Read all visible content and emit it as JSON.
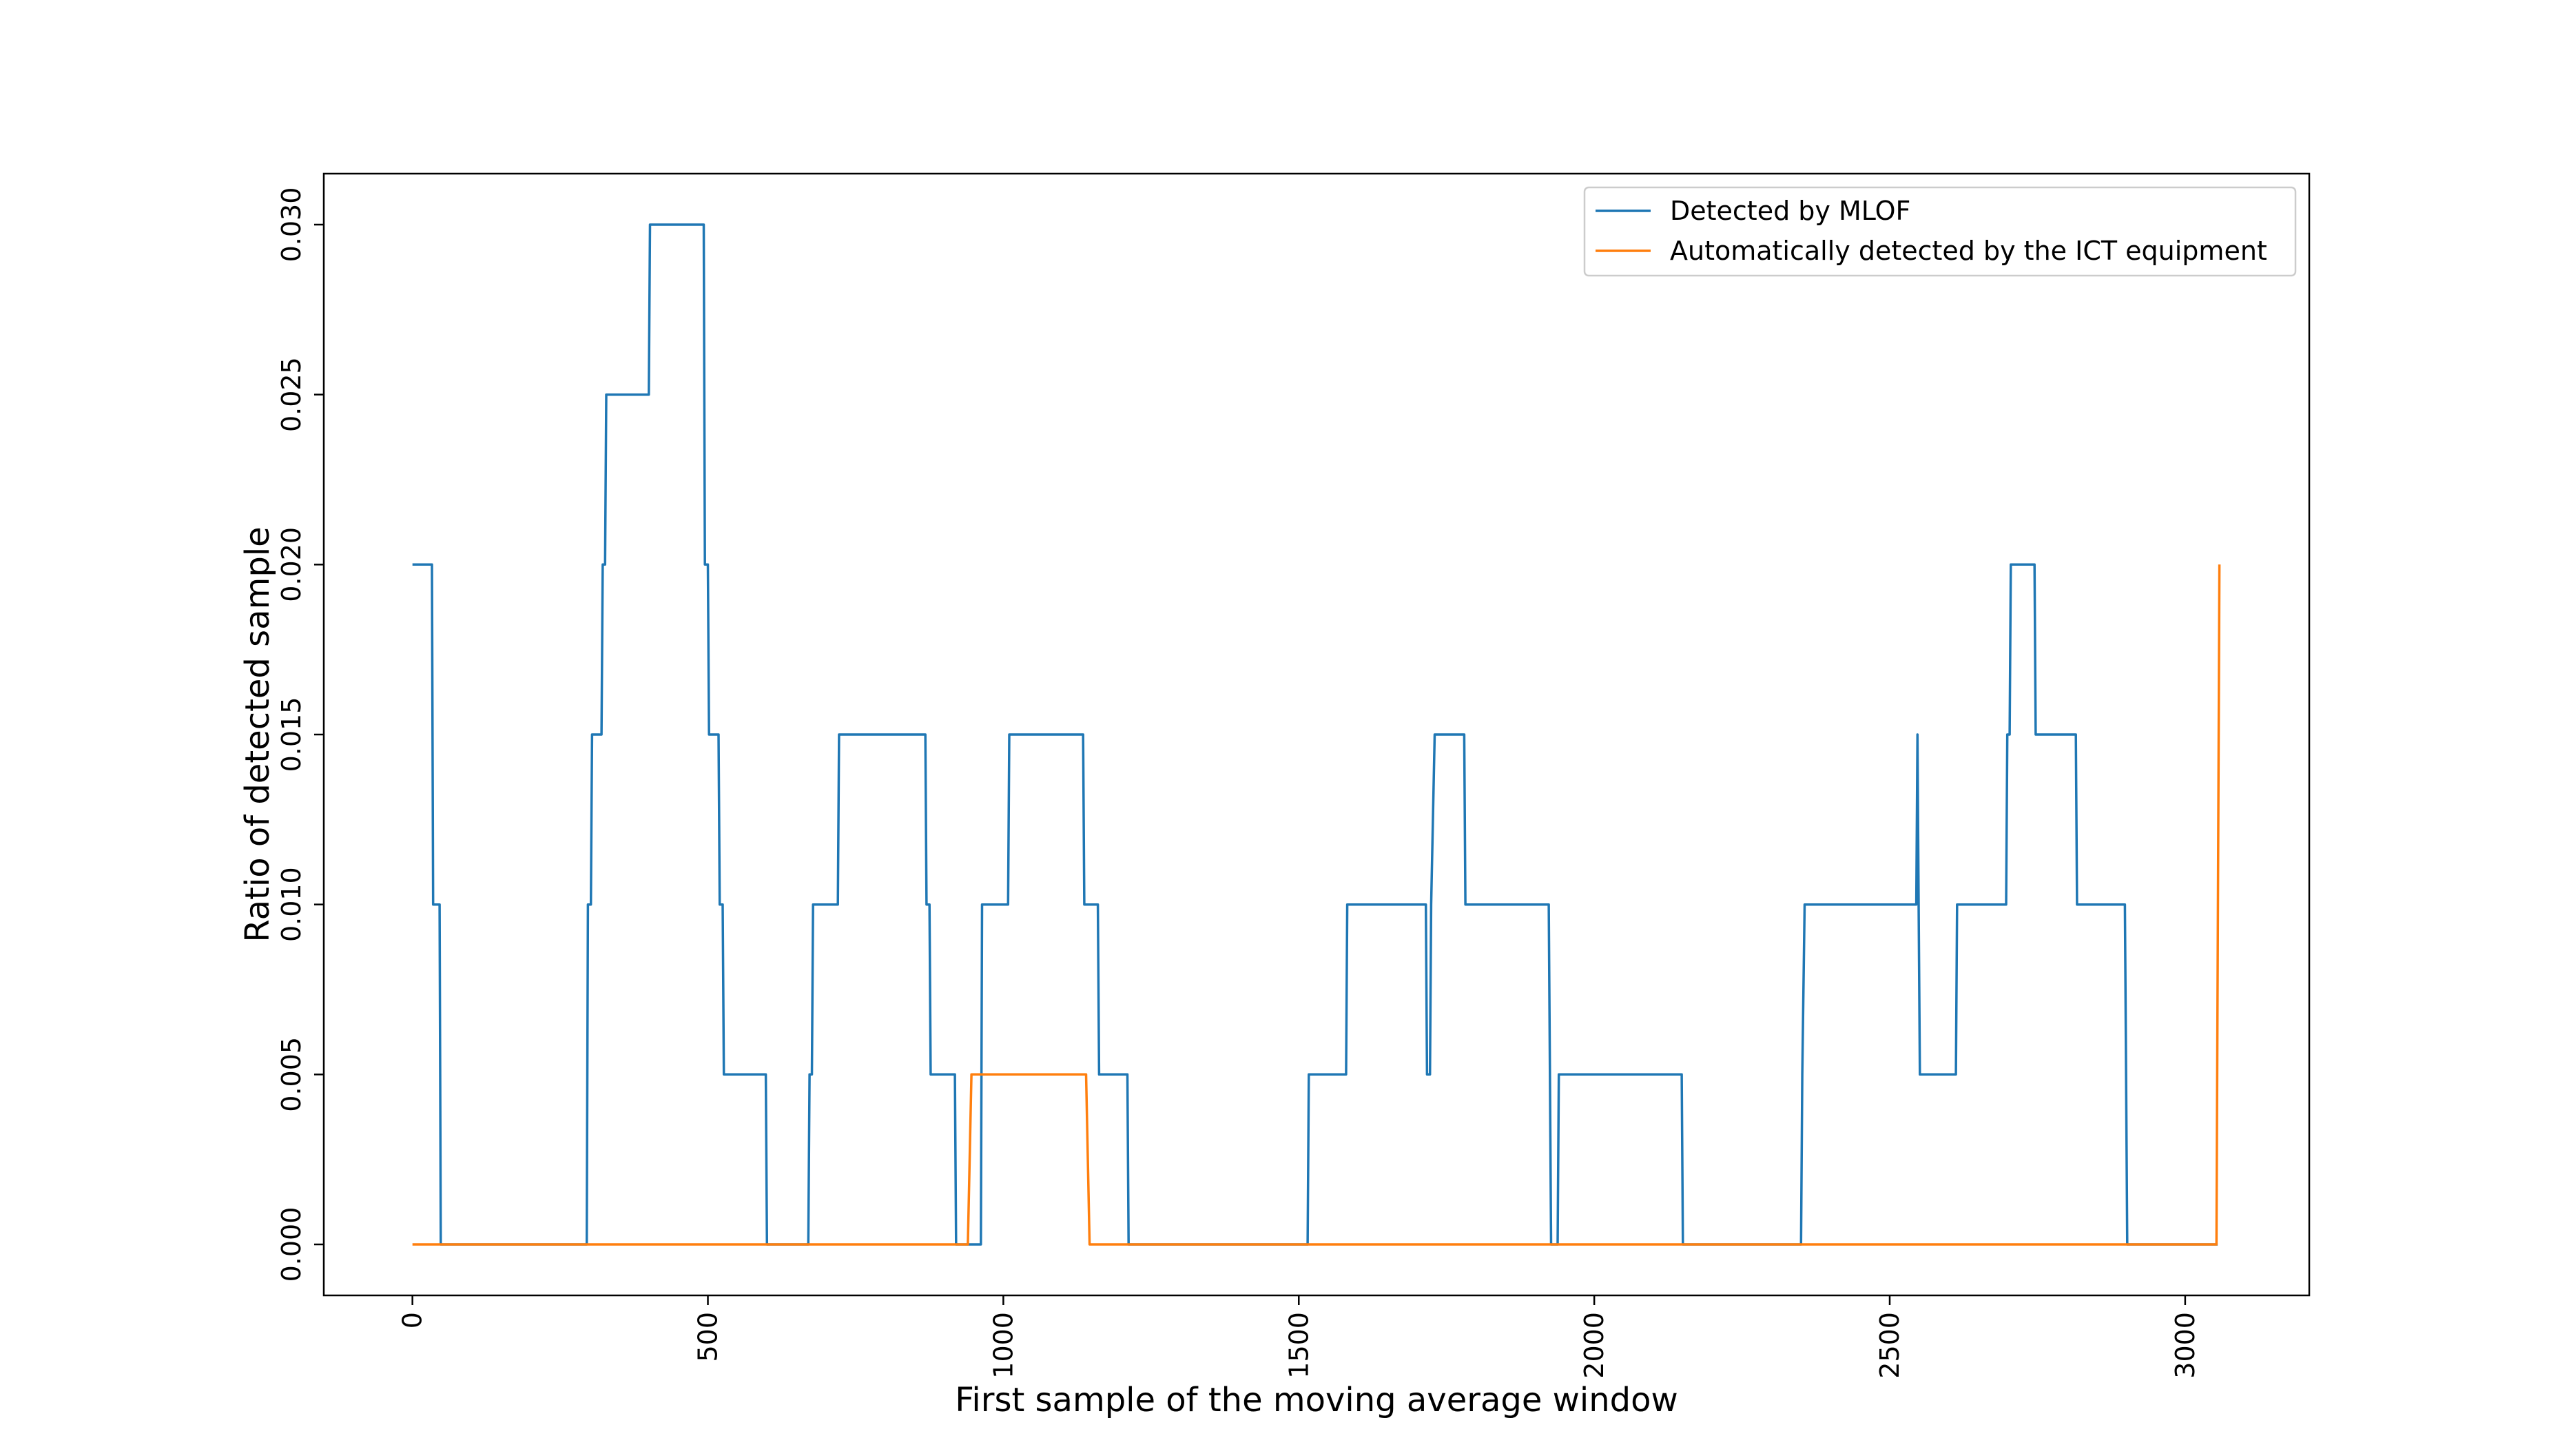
{
  "chart_data": {
    "type": "line",
    "title": "",
    "xlabel": "First sample of the moving average window",
    "ylabel": "Ratio of detected sample",
    "xlim": [
      -150,
      3210
    ],
    "ylim": [
      -0.0015,
      0.0315
    ],
    "x_ticks": [
      0,
      500,
      1000,
      1500,
      2000,
      2500,
      3000
    ],
    "x_tick_labels": [
      "0",
      "500",
      "1000",
      "1500",
      "2000",
      "2500",
      "3000"
    ],
    "y_ticks": [
      0.0,
      0.005,
      0.01,
      0.015,
      0.02,
      0.025,
      0.03
    ],
    "y_tick_labels": [
      "0.000",
      "0.005",
      "0.010",
      "0.015",
      "0.020",
      "0.025",
      "0.030"
    ],
    "tick_label_rotation": "vertical",
    "grid": false,
    "legend": {
      "position": "top-right",
      "frame": true
    },
    "series": [
      {
        "name": "Detected by MLOF",
        "color": "#1f77b4",
        "points": [
          [
            0,
            0.02
          ],
          [
            33,
            0.02
          ],
          [
            35,
            0.01
          ],
          [
            46,
            0.01
          ],
          [
            48,
            0.0
          ],
          [
            295,
            0.0
          ],
          [
            297,
            0.01
          ],
          [
            302,
            0.01
          ],
          [
            304,
            0.015
          ],
          [
            320,
            0.015
          ],
          [
            322,
            0.02
          ],
          [
            326,
            0.02
          ],
          [
            328,
            0.025
          ],
          [
            400,
            0.025
          ],
          [
            402,
            0.03
          ],
          [
            493,
            0.03
          ],
          [
            495,
            0.02
          ],
          [
            500,
            0.02
          ],
          [
            502,
            0.015
          ],
          [
            518,
            0.015
          ],
          [
            520,
            0.01
          ],
          [
            525,
            0.01
          ],
          [
            527,
            0.005
          ],
          [
            598,
            0.005
          ],
          [
            600,
            0.0
          ],
          [
            670,
            0.0
          ],
          [
            672,
            0.005
          ],
          [
            676,
            0.005
          ],
          [
            678,
            0.01
          ],
          [
            720,
            0.01
          ],
          [
            722,
            0.015
          ],
          [
            868,
            0.015
          ],
          [
            870,
            0.01
          ],
          [
            875,
            0.01
          ],
          [
            877,
            0.005
          ],
          [
            918,
            0.005
          ],
          [
            920,
            0.0
          ],
          [
            962,
            0.0
          ],
          [
            964,
            0.01
          ],
          [
            1008,
            0.01
          ],
          [
            1010,
            0.015
          ],
          [
            1135,
            0.015
          ],
          [
            1137,
            0.01
          ],
          [
            1160,
            0.01
          ],
          [
            1162,
            0.005
          ],
          [
            1210,
            0.005
          ],
          [
            1212,
            0.0
          ],
          [
            1515,
            0.0
          ],
          [
            1517,
            0.005
          ],
          [
            1580,
            0.005
          ],
          [
            1582,
            0.01
          ],
          [
            1715,
            0.01
          ],
          [
            1717,
            0.005
          ],
          [
            1722,
            0.005
          ],
          [
            1724,
            0.01
          ],
          [
            1730,
            0.015
          ],
          [
            1780,
            0.015
          ],
          [
            1782,
            0.01
          ],
          [
            1923,
            0.01
          ],
          [
            1925,
            0.005
          ],
          [
            1927,
            0.0
          ],
          [
            1938,
            0.0
          ],
          [
            1940,
            0.005
          ],
          [
            2148,
            0.005
          ],
          [
            2150,
            0.0
          ],
          [
            2350,
            0.0
          ],
          [
            2352,
            0.005
          ],
          [
            2356,
            0.01
          ],
          [
            2545,
            0.01
          ],
          [
            2547,
            0.015
          ],
          [
            2549,
            0.01
          ],
          [
            2551,
            0.005
          ],
          [
            2612,
            0.005
          ],
          [
            2614,
            0.01
          ],
          [
            2697,
            0.01
          ],
          [
            2699,
            0.015
          ],
          [
            2703,
            0.015
          ],
          [
            2705,
            0.02
          ],
          [
            2745,
            0.02
          ],
          [
            2747,
            0.015
          ],
          [
            2815,
            0.015
          ],
          [
            2817,
            0.01
          ],
          [
            2898,
            0.01
          ],
          [
            2900,
            0.005
          ],
          [
            2902,
            0.0
          ],
          [
            3055,
            0.0
          ]
        ]
      },
      {
        "name": "Automatically detected by the ICT equipment",
        "color": "#ff7f0e",
        "points": [
          [
            0,
            0.0
          ],
          [
            940,
            0.0
          ],
          [
            946,
            0.005
          ],
          [
            1140,
            0.005
          ],
          [
            1146,
            0.0
          ],
          [
            3053,
            0.0
          ],
          [
            3058,
            0.02
          ]
        ]
      }
    ]
  }
}
